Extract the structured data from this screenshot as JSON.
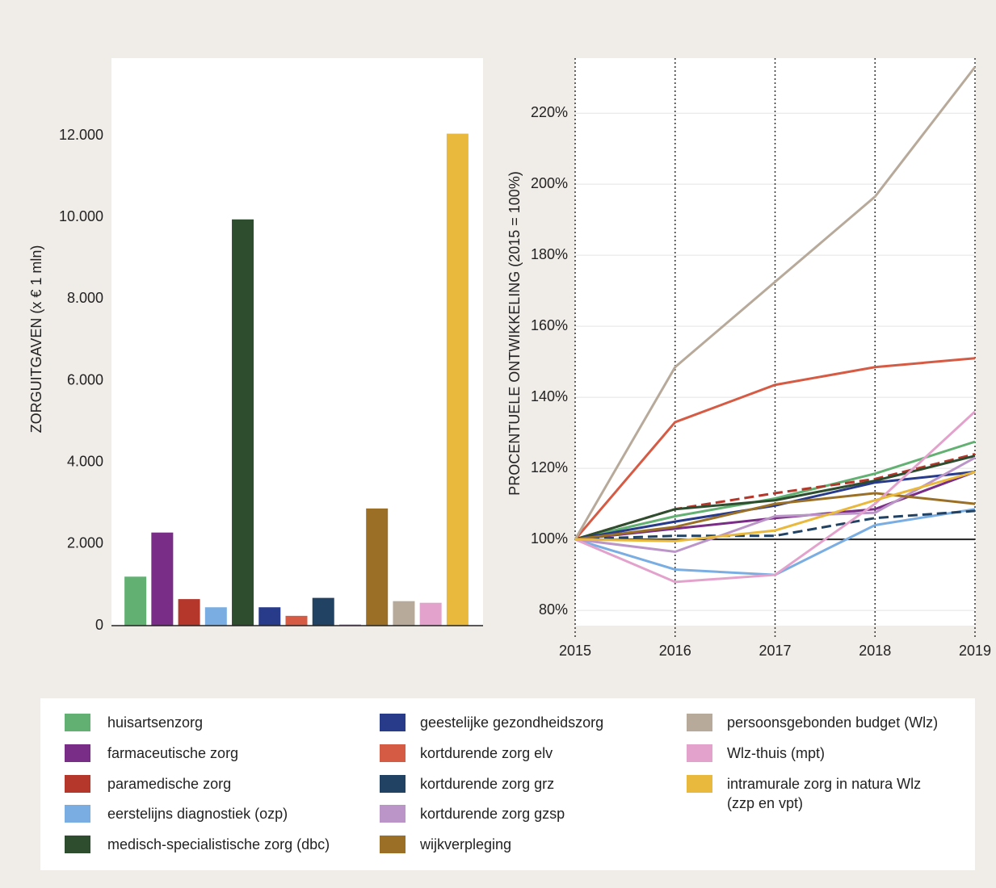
{
  "chart_data": [
    {
      "type": "bar",
      "y_label": "ZORGUITGAVEN (x  € 1 mln)",
      "categories": [
        "huisartsenzorg",
        "farmaceutische zorg",
        "paramedische zorg",
        "eerstelijns diagnostiek (ozp)",
        "medisch-specialistische zorg (dbc)",
        "geestelijke gezondheidszorg",
        "kortdurende zorg elv",
        "kortdurende zorg grz",
        "kortdurende zorg gzsp",
        "wijkverpleging",
        "persoonsgebonden budget (Wlz)",
        "Wlz-thuis (mpt)",
        "intramurale zorg in natura Wlz (zzp en vpt)"
      ],
      "values": [
        1200,
        2280,
        650,
        450,
        9950,
        450,
        240,
        680,
        30,
        2870,
        600,
        560,
        12050
      ],
      "colors": [
        "#62b072",
        "#7a2d86",
        "#b5362a",
        "#7aaee3",
        "#2d4d2e",
        "#283a8a",
        "#d65b45",
        "#214263",
        "#bb95c8",
        "#9b7026",
        "#b8aa9a",
        "#e3a2cc",
        "#e9b93d"
      ],
      "ylim": [
        0,
        13900
      ],
      "yticks": [
        0,
        {
          "value": 2000,
          "label": "2.000"
        },
        {
          "value": 4000,
          "label": "4.000"
        },
        {
          "value": 6000,
          "label": "6.000"
        },
        {
          "value": 8000,
          "label": "8.000"
        },
        {
          "value": 10000,
          "label": "10.000"
        },
        {
          "value": 12000,
          "label": "12.000"
        }
      ]
    },
    {
      "type": "line",
      "y_label": "PROCENTUELE ONTWIKKELING (2015 = 100%)",
      "x": [
        2015,
        2016,
        2017,
        2018,
        2019
      ],
      "xlim": [
        2015,
        2019
      ],
      "xticks": [
        2015,
        2016,
        2017,
        2018,
        2019
      ],
      "ylim": [
        75.7,
        235.5
      ],
      "yticks": [
        {
          "value": 80,
          "label": "80%"
        },
        {
          "value": 100,
          "label": "100%"
        },
        {
          "value": 120,
          "label": "120%"
        },
        {
          "value": 140,
          "label": "140%"
        },
        {
          "value": 160,
          "label": "160%"
        },
        {
          "value": 180,
          "label": "180%"
        },
        {
          "value": 200,
          "label": "200%"
        },
        {
          "value": 220,
          "label": "220%"
        }
      ],
      "reference_line": 100,
      "grid": true,
      "series": [
        {
          "color": "#62b072",
          "dashed": false,
          "values": [
            100,
            106.5,
            111.5,
            118.5,
            127.5
          ]
        },
        {
          "color": "#7a2d86",
          "dashed": false,
          "values": [
            100,
            103,
            106,
            108.5,
            119
          ]
        },
        {
          "color": "#b5362a",
          "dashed": true,
          "values": [
            100,
            108.5,
            113,
            117,
            124
          ]
        },
        {
          "color": "#7aaee3",
          "dashed": false,
          "values": [
            100,
            91.5,
            90,
            104,
            108.5
          ]
        },
        {
          "color": "#2d4d2e",
          "dashed": false,
          "values": [
            100,
            108.5,
            111,
            116.5,
            123.5
          ]
        },
        {
          "color": "#283a8a",
          "dashed": false,
          "values": [
            100,
            105,
            109.5,
            116,
            119
          ]
        },
        {
          "color": "#d65b45",
          "dashed": false,
          "values": [
            100,
            133,
            143.5,
            148.5,
            151
          ]
        },
        {
          "color": "#214263",
          "dashed": true,
          "values": [
            100,
            101,
            101,
            106,
            108
          ]
        },
        {
          "color": "#bb95c8",
          "dashed": false,
          "values": [
            100,
            96.5,
            106.5,
            107.5,
            123
          ]
        },
        {
          "color": "#9b7026",
          "dashed": false,
          "values": [
            100,
            103.5,
            110,
            113,
            110
          ]
        },
        {
          "color": "#b8aa9a",
          "dashed": false,
          "values": [
            100,
            148.5,
            172.5,
            196.5,
            233
          ]
        },
        {
          "color": "#e3a2cc",
          "dashed": false,
          "values": [
            100,
            88,
            90,
            110,
            136
          ]
        },
        {
          "color": "#e9b93d",
          "dashed": false,
          "values": [
            100,
            99.5,
            102.5,
            111,
            119
          ]
        }
      ]
    }
  ]
}
